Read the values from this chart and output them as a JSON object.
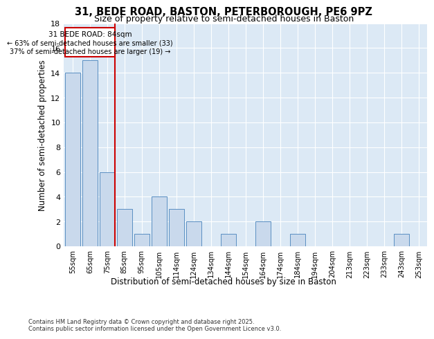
{
  "title_line1": "31, BEDE ROAD, BASTON, PETERBOROUGH, PE6 9PZ",
  "title_line2": "Size of property relative to semi-detached houses in Baston",
  "xlabel": "Distribution of semi-detached houses by size in Baston",
  "ylabel": "Number of semi-detached properties",
  "categories": [
    "55sqm",
    "65sqm",
    "75sqm",
    "85sqm",
    "95sqm",
    "105sqm",
    "114sqm",
    "124sqm",
    "134sqm",
    "144sqm",
    "154sqm",
    "164sqm",
    "174sqm",
    "184sqm",
    "194sqm",
    "204sqm",
    "213sqm",
    "223sqm",
    "233sqm",
    "243sqm",
    "253sqm"
  ],
  "values": [
    14,
    15,
    6,
    3,
    1,
    4,
    3,
    2,
    0,
    1,
    0,
    2,
    0,
    1,
    0,
    0,
    0,
    0,
    0,
    1,
    0
  ],
  "bar_color": "#c9d9ec",
  "bar_edge_color": "#5a8fc2",
  "highlight_line_color": "#cc0000",
  "property_label": "31 BEDE ROAD: 84sqm",
  "annotation_left": "← 63% of semi-detached houses are smaller (33)",
  "annotation_right": "37% of semi-detached houses are larger (19) →",
  "box_color": "#cc0000",
  "ylim": [
    0,
    18
  ],
  "yticks": [
    0,
    2,
    4,
    6,
    8,
    10,
    12,
    14,
    16,
    18
  ],
  "footer_line1": "Contains HM Land Registry data © Crown copyright and database right 2025.",
  "footer_line2": "Contains public sector information licensed under the Open Government Licence v3.0.",
  "bg_color": "#dce9f5",
  "fig_bg_color": "#ffffff"
}
